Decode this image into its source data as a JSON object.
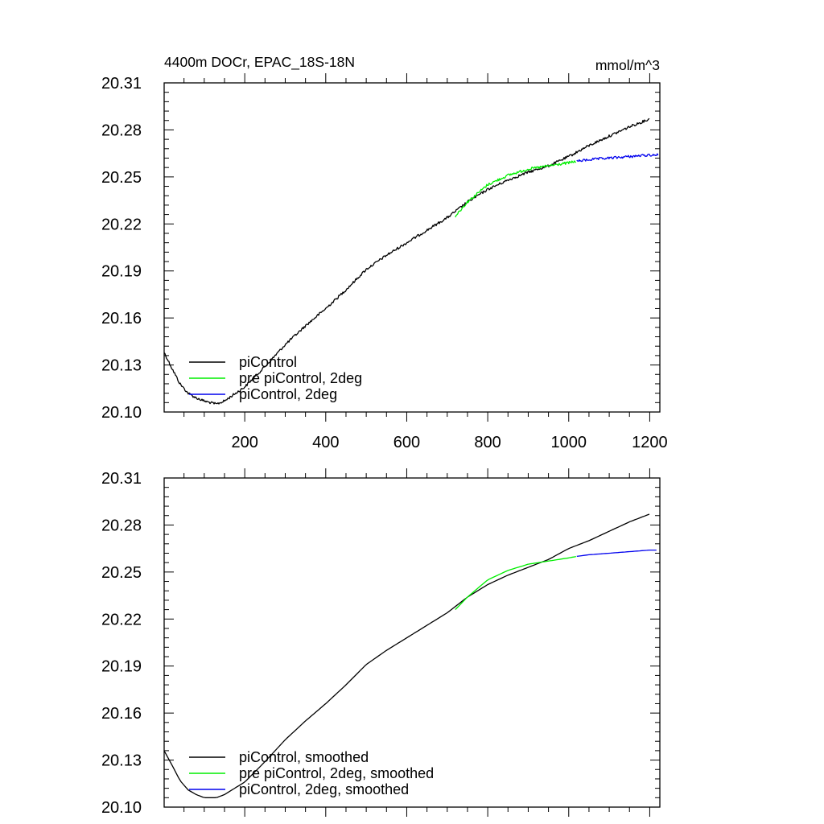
{
  "colors": {
    "piControl": "#000000",
    "pre_piControl_2deg": "#00ee00",
    "piControl_2deg": "#0000ee"
  },
  "chart_data": [
    {
      "type": "line",
      "title": "4400m DOCr, EPAC_18S-18N",
      "units": "mmol/m^3",
      "xlabel": "",
      "ylabel": "",
      "xlim": [
        1,
        1225
      ],
      "ylim": [
        20.1,
        20.31
      ],
      "xticks": [
        200,
        400,
        600,
        800,
        1000,
        1200
      ],
      "xtick_labels": [
        "200",
        "400",
        "600",
        "800",
        "1000",
        "1200"
      ],
      "yticks": [
        20.1,
        20.13,
        20.16,
        20.19,
        20.22,
        20.25,
        20.28,
        20.31
      ],
      "ytick_labels": [
        "20.10",
        "20.13",
        "20.16",
        "20.19",
        "20.22",
        "20.25",
        "20.28",
        "20.31"
      ],
      "legend_position": "bottom-left",
      "noisy": true,
      "series": [
        {
          "name": "piControl",
          "color": "#000000",
          "x": [
            1,
            20,
            40,
            60,
            80,
            100,
            130,
            150,
            200,
            250,
            300,
            350,
            400,
            450,
            500,
            550,
            600,
            650,
            700,
            720,
            750,
            800,
            850,
            900,
            950,
            1000,
            1050,
            1100,
            1150,
            1200
          ],
          "y": [
            20.138,
            20.128,
            20.118,
            20.112,
            20.109,
            20.107,
            20.105,
            20.107,
            20.116,
            20.129,
            20.143,
            20.155,
            20.166,
            20.178,
            20.191,
            20.2,
            20.208,
            20.216,
            20.224,
            20.228,
            20.234,
            20.242,
            20.248,
            20.253,
            20.257,
            20.263,
            20.27,
            20.276,
            20.282,
            20.287
          ]
        },
        {
          "name": "pre piControl, 2deg",
          "color": "#00ee00",
          "x": [
            720,
            750,
            800,
            850,
            900,
            950,
            1000,
            1020
          ],
          "y": [
            20.225,
            20.234,
            20.245,
            20.251,
            20.255,
            20.257,
            20.259,
            20.26
          ]
        },
        {
          "name": "piControl, 2deg",
          "color": "#0000ee",
          "x": [
            1020,
            1050,
            1100,
            1150,
            1200,
            1222
          ],
          "y": [
            20.26,
            20.261,
            20.262,
            20.263,
            20.264,
            20.264
          ]
        }
      ]
    },
    {
      "type": "line",
      "title": "",
      "xlabel": "",
      "ylabel": "",
      "xlim": [
        1,
        1225
      ],
      "ylim": [
        20.1,
        20.31
      ],
      "xticks": [
        200,
        400,
        600,
        800,
        1000,
        1200
      ],
      "yticks": [
        20.1,
        20.13,
        20.16,
        20.19,
        20.22,
        20.25,
        20.28,
        20.31
      ],
      "ytick_labels": [
        "20.10",
        "20.13",
        "20.16",
        "20.19",
        "20.22",
        "20.25",
        "20.28",
        "20.31"
      ],
      "legend_position": "bottom-left",
      "noisy": false,
      "series": [
        {
          "name": "piControl, smoothed",
          "color": "#000000",
          "x": [
            1,
            20,
            40,
            60,
            80,
            100,
            130,
            150,
            200,
            250,
            300,
            350,
            400,
            450,
            500,
            550,
            600,
            650,
            700,
            720,
            750,
            800,
            850,
            900,
            950,
            1000,
            1050,
            1100,
            1150,
            1200
          ],
          "y": [
            20.136,
            20.127,
            20.117,
            20.111,
            20.108,
            20.106,
            20.106,
            20.108,
            20.116,
            20.129,
            20.143,
            20.155,
            20.166,
            20.178,
            20.191,
            20.2,
            20.208,
            20.216,
            20.224,
            20.228,
            20.234,
            20.242,
            20.248,
            20.253,
            20.258,
            20.265,
            20.27,
            20.276,
            20.282,
            20.287
          ]
        },
        {
          "name": "pre piControl, 2deg, smoothed",
          "color": "#00ee00",
          "x": [
            720,
            750,
            800,
            850,
            900,
            950,
            1000,
            1020
          ],
          "y": [
            20.226,
            20.234,
            20.245,
            20.251,
            20.255,
            20.257,
            20.259,
            20.26
          ]
        },
        {
          "name": "piControl, 2deg, smoothed",
          "color": "#0000ee",
          "x": [
            1020,
            1050,
            1100,
            1150,
            1200,
            1222
          ],
          "y": [
            20.26,
            20.261,
            20.262,
            20.263,
            20.264,
            20.264
          ]
        }
      ]
    }
  ]
}
